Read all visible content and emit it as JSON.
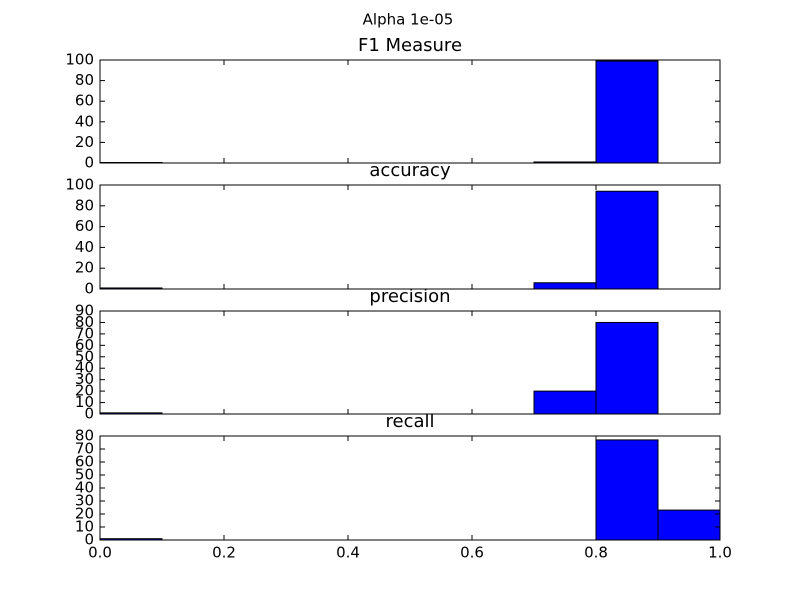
{
  "title": "Alpha 1e-05",
  "chart_data": [
    {
      "type": "histogram",
      "title": "F1 Measure",
      "color": "#0000ff",
      "bins": [
        0,
        0.1,
        0.2,
        0.3,
        0.4,
        0.5,
        0.6,
        0.7,
        0.8,
        0.9,
        1.0
      ],
      "values": [
        0.5,
        0,
        0,
        0,
        0,
        0,
        0,
        1,
        99,
        0
      ],
      "xlim": [
        0,
        1
      ],
      "ylim": [
        0,
        100
      ],
      "yticks": [
        0,
        20,
        40,
        60,
        80,
        100
      ]
    },
    {
      "type": "histogram",
      "title": "accuracy",
      "color": "#0000ff",
      "bins": [
        0,
        0.1,
        0.2,
        0.3,
        0.4,
        0.5,
        0.6,
        0.7,
        0.8,
        0.9,
        1.0
      ],
      "values": [
        1,
        0,
        0,
        0,
        0,
        0,
        0,
        6,
        94,
        0
      ],
      "xlim": [
        0,
        1
      ],
      "ylim": [
        0,
        100
      ],
      "yticks": [
        0,
        20,
        40,
        60,
        80,
        100
      ]
    },
    {
      "type": "histogram",
      "title": "precision",
      "color": "#0000ff",
      "bins": [
        0,
        0.1,
        0.2,
        0.3,
        0.4,
        0.5,
        0.6,
        0.7,
        0.8,
        0.9,
        1.0
      ],
      "values": [
        1,
        0,
        0,
        0,
        0,
        0,
        0,
        20,
        80,
        0
      ],
      "xlim": [
        0,
        1
      ],
      "ylim": [
        0,
        90
      ],
      "yticks": [
        0,
        10,
        20,
        30,
        40,
        50,
        60,
        70,
        80,
        90
      ]
    },
    {
      "type": "histogram",
      "title": "recall",
      "color": "#0000ff",
      "bins": [
        0,
        0.1,
        0.2,
        0.3,
        0.4,
        0.5,
        0.6,
        0.7,
        0.8,
        0.9,
        1.0
      ],
      "values": [
        1,
        0,
        0,
        0,
        0,
        0,
        0,
        0,
        77,
        23
      ],
      "xlim": [
        0,
        1
      ],
      "ylim": [
        0,
        80
      ],
      "yticks": [
        0,
        10,
        20,
        30,
        40,
        50,
        60,
        70,
        80
      ],
      "xticks": [
        {
          "value": 0,
          "label": "0.0"
        },
        {
          "value": 0.2,
          "label": "0.2"
        },
        {
          "value": 0.4,
          "label": "0.4"
        },
        {
          "value": 0.6,
          "label": "0.6"
        },
        {
          "value": 0.8,
          "label": "0.8"
        },
        {
          "value": 1.0,
          "label": "1.0"
        }
      ]
    }
  ]
}
